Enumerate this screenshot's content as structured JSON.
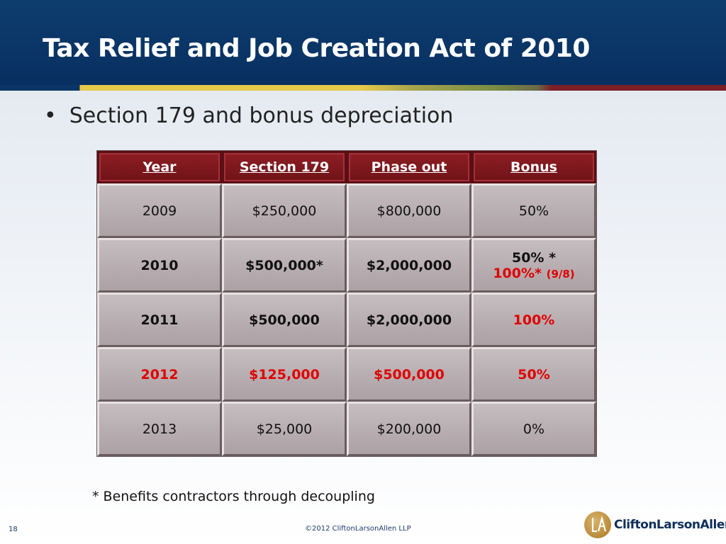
{
  "slide": {
    "title": "Tax Relief and Job Creation Act of 2010",
    "bullet": "Section 179 and bonus depreciation",
    "footnote": "* Benefits contractors through decoupling",
    "slide_number": "18",
    "copyright": "©2012 CliftonLarsonAllen LLP",
    "logo_text": "CliftonLarsonAllen"
  },
  "table": {
    "headers": [
      "Year",
      "Section 179",
      "Phase out",
      "Bonus"
    ],
    "rows": [
      {
        "year": "2009",
        "section179": "$250,000",
        "phaseout": "$800,000",
        "bonus": "50%"
      },
      {
        "year": "2010",
        "section179": "$500,000*",
        "phaseout": "$2,000,000",
        "bonus": "50% *",
        "bonus_line2": "100%*",
        "bonus_line2_note": "(9/8)"
      },
      {
        "year": "2011",
        "section179": "$500,000",
        "phaseout": "$2,000,000",
        "bonus": "100%"
      },
      {
        "year": "2012",
        "section179": "$125,000",
        "phaseout": "$500,000",
        "bonus": "50%"
      },
      {
        "year": "2013",
        "section179": "$25,000",
        "phaseout": "$200,000",
        "bonus": "0%"
      }
    ]
  },
  "colors": {
    "header_blue": "#0a3566",
    "table_header_red": "#7d1f26",
    "highlight_red": "#e00000"
  }
}
